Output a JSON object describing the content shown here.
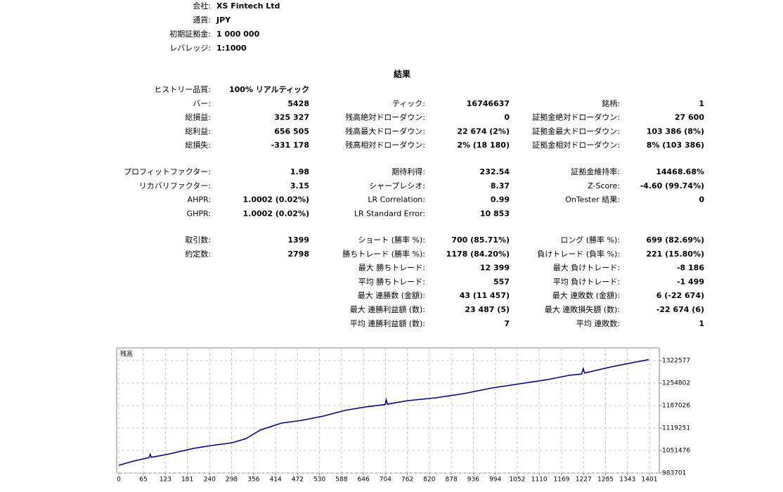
{
  "header": {
    "rows": [
      [
        "会社:",
        "XS Fintech Ltd"
      ],
      [
        "通貨:",
        "JPY"
      ],
      [
        "初期証拠金:",
        "1 000 000"
      ],
      [
        "レバレッジ:",
        "1:1000"
      ]
    ]
  },
  "results": {
    "title": "結果",
    "blocks": [
      [
        [
          "ヒストリー品質:",
          "100% リアルティック",
          null,
          null,
          null,
          null
        ],
        [
          "バー:",
          "5428",
          "ティック:",
          "16746637",
          "銘柄:",
          "1"
        ],
        [
          "総損益:",
          "325 327",
          "残高絶対ドローダウン:",
          "0",
          "証拠金絶対ドローダウン:",
          "27 600"
        ],
        [
          "総利益:",
          "656 505",
          "残高最大ドローダウン:",
          "22 674 (2%)",
          "証拠金最大ドローダウン:",
          "103 386 (8%)"
        ],
        [
          "総損失:",
          "-331 178",
          "残高相対ドローダウン:",
          "2% (18 180)",
          "証拠金相対ドローダウン:",
          "8% (103 386)"
        ]
      ],
      [
        [
          "プロフィットファクター:",
          "1.98",
          "期待利得:",
          "232.54",
          "証拠金維持率:",
          "14468.68%"
        ],
        [
          "リカバリファクター:",
          "3.15",
          "シャープレシオ:",
          "8.37",
          "Z-Score:",
          "-4.60 (99.74%)"
        ],
        [
          "AHPR:",
          "1.0002 (0.02%)",
          "LR Correlation:",
          "0.99",
          "OnTester 結果:",
          "0"
        ],
        [
          "GHPR:",
          "1.0002 (0.02%)",
          "LR Standard Error:",
          "10 853",
          null,
          null
        ]
      ],
      [
        [
          "取引数:",
          "1399",
          "ショート (勝率 %):",
          "700 (85.71%)",
          "ロング (勝率 %):",
          "699 (82.69%)"
        ],
        [
          "約定数:",
          "2798",
          "勝ちトレード (勝率 %):",
          "1178 (84.20%)",
          "負けトレード (負率 %):",
          "221 (15.80%)"
        ],
        [
          null,
          null,
          "最大 勝ちトレード:",
          "12 399",
          "最大 負けトレード:",
          "-8 186"
        ],
        [
          null,
          null,
          "平均 勝ちトレード:",
          "557",
          "平均 負けトレード:",
          "-1 499"
        ],
        [
          null,
          null,
          "最大 連勝数 (金額):",
          "43 (11 457)",
          "最大 連敗数 (金額):",
          "6 (-22 674)"
        ],
        [
          null,
          null,
          "最大 連勝利益額 (数):",
          "23 487 (5)",
          "最大 連敗損失額 (数):",
          "-22 674 (6)"
        ],
        [
          null,
          null,
          "平均 連勝利益額 (数):",
          "7",
          "平均 連敗数:",
          "1"
        ]
      ]
    ]
  },
  "chart_data": {
    "type": "line",
    "x": [
      0,
      39,
      80,
      83,
      86,
      132,
      197,
      243,
      299,
      336,
      373,
      429,
      484,
      540,
      596,
      651,
      703,
      706,
      709,
      763,
      837,
      911,
      985,
      1059,
      1133,
      1189,
      1222,
      1226,
      1230,
      1300,
      1356,
      1399
    ],
    "series": [
      {
        "name": "残高",
        "color": "#00007f",
        "values": [
          1007000,
          1019700,
          1030000,
          1040000,
          1031000,
          1040900,
          1057800,
          1066300,
          1074800,
          1087500,
          1112900,
          1134100,
          1142500,
          1155200,
          1172200,
          1182800,
          1190000,
          1204000,
          1191000,
          1201800,
          1210300,
          1223000,
          1240000,
          1252700,
          1265400,
          1278100,
          1282000,
          1298000,
          1285000,
          1303500,
          1316200,
          1325300
        ]
      }
    ],
    "xlim": [
      0,
      1427
    ],
    "xticks": [
      0,
      65,
      123,
      181,
      240,
      298,
      356,
      414,
      472,
      530,
      588,
      646,
      704,
      762,
      820,
      878,
      936,
      994,
      1052,
      1110,
      1169,
      1227,
      1285,
      1343,
      1401
    ],
    "ylim": [
      983701,
      1360700
    ],
    "yticks": [
      983701,
      1051476,
      1119251,
      1187026,
      1254802,
      1322577
    ],
    "grid": true
  }
}
